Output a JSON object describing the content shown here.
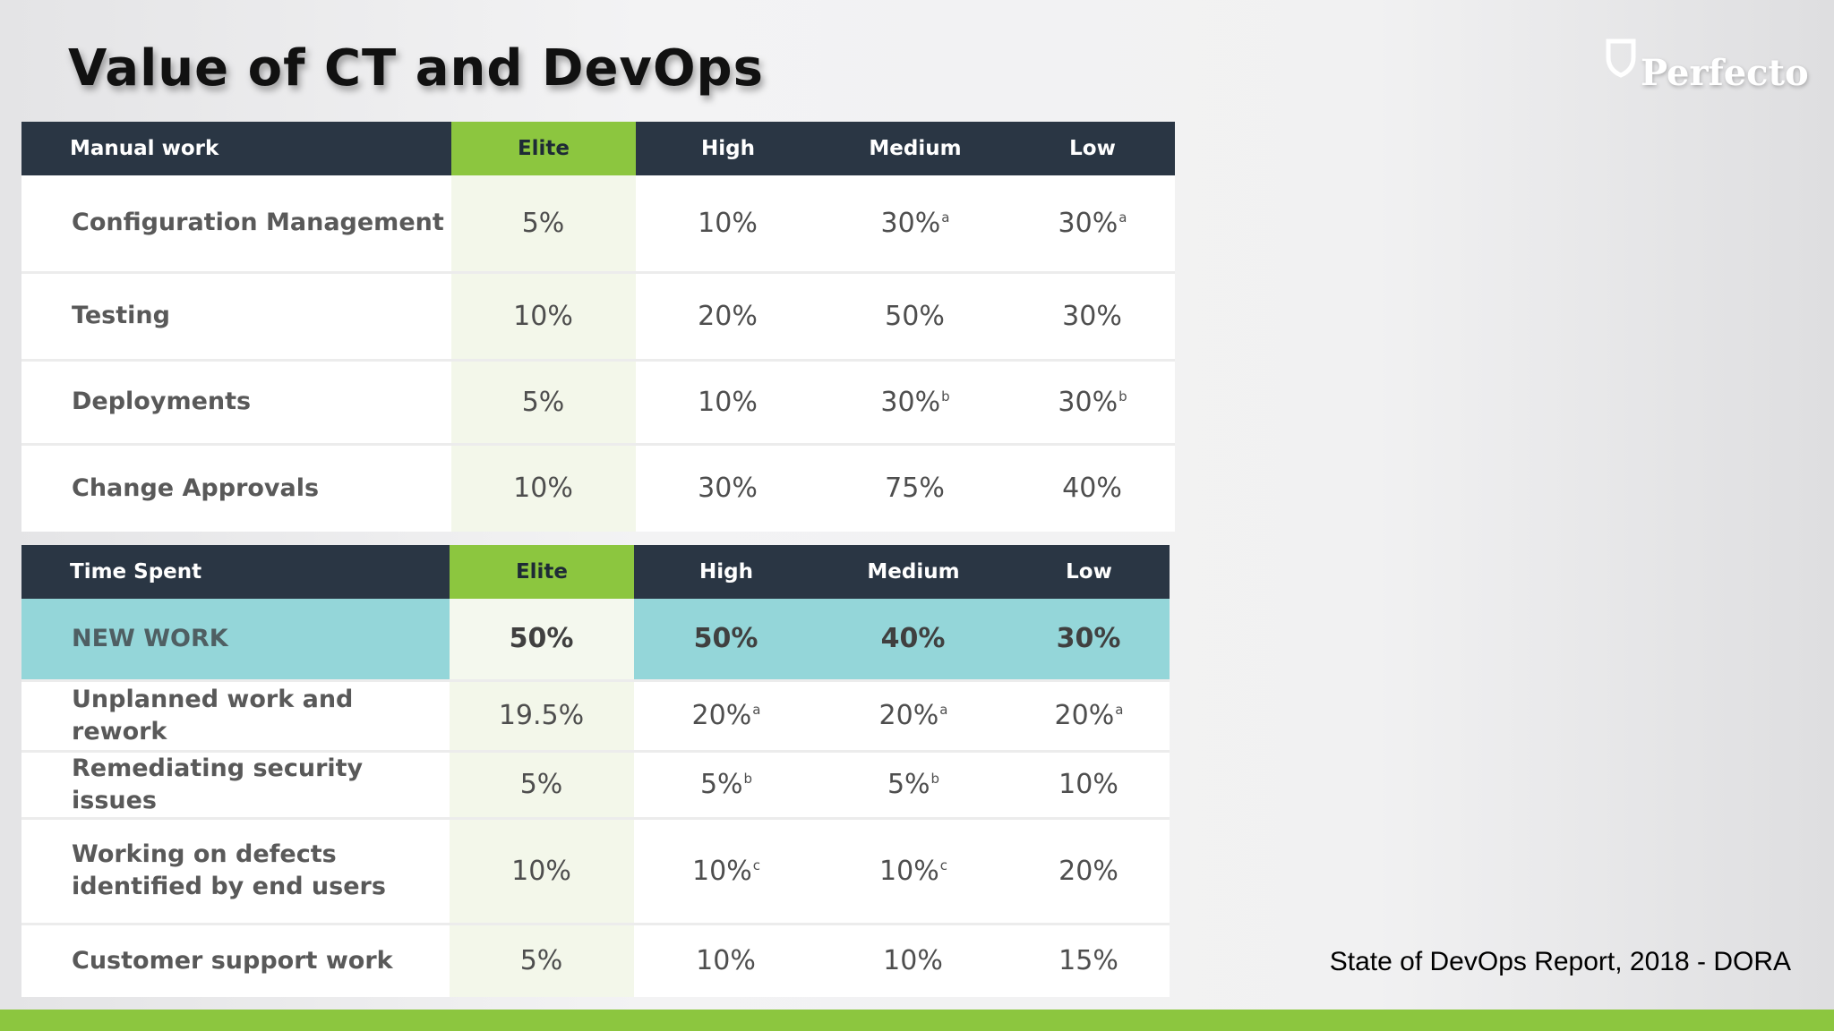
{
  "slide": {
    "title": "Value of CT and DevOps",
    "logo_text": "Perfecto",
    "logo_icon": "shield-outline-icon",
    "source": "State of DevOps Report, 2018 - DORA"
  },
  "manual_work": {
    "headers": [
      "Manual work",
      "Elite",
      "High",
      "Medium",
      "Low"
    ],
    "rows": [
      {
        "label": "Configuration Management",
        "cells": [
          {
            "v": "5%",
            "fn": ""
          },
          {
            "v": "10%",
            "fn": ""
          },
          {
            "v": "30%",
            "fn": "a"
          },
          {
            "v": "30%",
            "fn": "a"
          }
        ]
      },
      {
        "label": "Testing",
        "cells": [
          {
            "v": "10%",
            "fn": ""
          },
          {
            "v": "20%",
            "fn": ""
          },
          {
            "v": "50%",
            "fn": ""
          },
          {
            "v": "30%",
            "fn": ""
          }
        ]
      },
      {
        "label": "Deployments",
        "cells": [
          {
            "v": "5%",
            "fn": ""
          },
          {
            "v": "10%",
            "fn": ""
          },
          {
            "v": "30%",
            "fn": "b"
          },
          {
            "v": "30%",
            "fn": "b"
          }
        ]
      },
      {
        "label": "Change Approvals",
        "cells": [
          {
            "v": "10%",
            "fn": ""
          },
          {
            "v": "30%",
            "fn": ""
          },
          {
            "v": "75%",
            "fn": ""
          },
          {
            "v": "40%",
            "fn": ""
          }
        ]
      }
    ]
  },
  "time_spent": {
    "headers": [
      "Time Spent",
      "Elite",
      "High",
      "Medium",
      "Low"
    ],
    "rows": [
      {
        "label": "NEW WORK",
        "cells": [
          {
            "v": "50%",
            "fn": ""
          },
          {
            "v": "50%",
            "fn": ""
          },
          {
            "v": "40%",
            "fn": ""
          },
          {
            "v": "30%",
            "fn": ""
          }
        ]
      },
      {
        "label": "Unplanned work and rework",
        "cells": [
          {
            "v": "19.5%",
            "fn": ""
          },
          {
            "v": "20%",
            "fn": "a"
          },
          {
            "v": "20%",
            "fn": "a"
          },
          {
            "v": "20%",
            "fn": "a"
          }
        ]
      },
      {
        "label": "Remediating security issues",
        "cells": [
          {
            "v": "5%",
            "fn": ""
          },
          {
            "v": "5%",
            "fn": "b"
          },
          {
            "v": "5%",
            "fn": "b"
          },
          {
            "v": "10%",
            "fn": ""
          }
        ]
      },
      {
        "label": "Working on defects identified by end users",
        "cells": [
          {
            "v": "10%",
            "fn": ""
          },
          {
            "v": "10%",
            "fn": "c"
          },
          {
            "v": "10%",
            "fn": "c"
          },
          {
            "v": "20%",
            "fn": ""
          }
        ]
      },
      {
        "label": "Customer support work",
        "cells": [
          {
            "v": "5%",
            "fn": ""
          },
          {
            "v": "10%",
            "fn": ""
          },
          {
            "v": "10%",
            "fn": ""
          },
          {
            "v": "15%",
            "fn": ""
          }
        ]
      }
    ]
  },
  "colors": {
    "header_bg": "#2a3644",
    "elite_header": "#8cc63f",
    "highlight_row": "#94d6d9",
    "accent_bar": "#8cc63f"
  }
}
